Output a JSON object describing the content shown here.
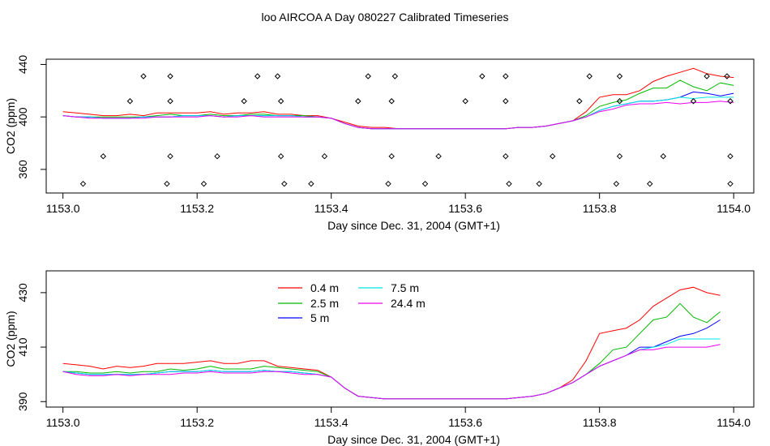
{
  "figure_title": "loo AIRCOA A  Day 080227  Calibrated Timeseries",
  "colors": {
    "0.4 m": "#ff0000",
    "2.5 m": "#00bb00",
    "5 m": "#0000ff",
    "7.5 m": "#00e5e5",
    "24.4 m": "#ee00ee"
  },
  "chart_data": [
    {
      "type": "line",
      "title": "",
      "xlabel": "Day since Dec. 31, 2004 (GMT+1)",
      "ylabel": "CO2 (ppm)",
      "xlim": [
        1152.975,
        1154.03
      ],
      "ylim": [
        342,
        444
      ],
      "xticks": [
        "1153.0",
        "1153.2",
        "1153.4",
        "1153.6",
        "1153.8",
        "1154.0"
      ],
      "yticks": [
        "360",
        "400",
        "440"
      ],
      "legend": "none",
      "x": [
        1153.0,
        1153.02,
        1153.04,
        1153.06,
        1153.08,
        1153.1,
        1153.12,
        1153.14,
        1153.16,
        1153.18,
        1153.2,
        1153.22,
        1153.24,
        1153.26,
        1153.28,
        1153.3,
        1153.32,
        1153.34,
        1153.36,
        1153.38,
        1153.4,
        1153.42,
        1153.44,
        1153.46,
        1153.48,
        1153.5,
        1153.52,
        1153.54,
        1153.56,
        1153.58,
        1153.6,
        1153.62,
        1153.64,
        1153.66,
        1153.68,
        1153.7,
        1153.72,
        1153.74,
        1153.76,
        1153.78,
        1153.8,
        1153.82,
        1153.84,
        1153.86,
        1153.88,
        1153.9,
        1153.92,
        1153.94,
        1153.96,
        1153.98,
        1154.0
      ],
      "series": [
        {
          "name": "0.4 m",
          "values": [
            404,
            403,
            402,
            401,
            401,
            402,
            401,
            403,
            403,
            403,
            403,
            404,
            402,
            403,
            403,
            404,
            402,
            402,
            401,
            401,
            399,
            396,
            393,
            392,
            392,
            391,
            391,
            391,
            391,
            391,
            391,
            391,
            391,
            391,
            392,
            392,
            393,
            395,
            397,
            404,
            415,
            417,
            417,
            420,
            427,
            431,
            434,
            437,
            433,
            431,
            430
          ]
        },
        {
          "name": "2.5 m",
          "values": [
            401,
            400,
            400,
            400,
            400,
            400,
            400,
            401,
            402,
            401,
            401,
            402,
            401,
            401,
            402,
            402,
            401,
            401,
            401,
            400,
            399,
            395,
            392,
            391,
            391,
            391,
            391,
            391,
            391,
            391,
            391,
            391,
            391,
            391,
            392,
            392,
            393,
            395,
            397,
            401,
            408,
            411,
            413,
            418,
            422,
            422,
            428,
            423,
            420,
            426,
            424
          ]
        },
        {
          "name": "5 m",
          "values": [
            401,
            400,
            400,
            399,
            399,
            399,
            400,
            400,
            400,
            401,
            401,
            401,
            400,
            401,
            401,
            401,
            401,
            401,
            400,
            400,
            399,
            395,
            392,
            391,
            391,
            391,
            391,
            391,
            391,
            391,
            391,
            391,
            391,
            391,
            392,
            392,
            393,
            395,
            397,
            400,
            405,
            408,
            410,
            412,
            412,
            413,
            415,
            419,
            418,
            416,
            418
          ]
        },
        {
          "name": "7.5 m",
          "values": [
            401,
            400,
            400,
            399,
            399,
            399,
            400,
            400,
            400,
            401,
            401,
            401,
            400,
            401,
            401,
            401,
            401,
            401,
            400,
            400,
            399,
            395,
            392,
            391,
            391,
            391,
            391,
            391,
            391,
            391,
            391,
            391,
            391,
            391,
            392,
            392,
            393,
            395,
            397,
            400,
            405,
            408,
            410,
            412,
            412,
            413,
            415,
            414,
            415,
            415,
            415
          ]
        },
        {
          "name": "24.4 m",
          "values": [
            401,
            400,
            399,
            399,
            399,
            399,
            399,
            400,
            400,
            400,
            400,
            401,
            400,
            400,
            401,
            400,
            400,
            400,
            400,
            400,
            399,
            395,
            392,
            391,
            391,
            391,
            391,
            391,
            391,
            391,
            391,
            391,
            391,
            391,
            392,
            392,
            393,
            395,
            397,
            400,
            404,
            406,
            409,
            410,
            410,
            411,
            410,
            411,
            411,
            412,
            411
          ]
        }
      ],
      "points": [
        [
          1153.03,
          349
        ],
        [
          1153.06,
          370
        ],
        [
          1153.1,
          412
        ],
        [
          1153.12,
          431
        ],
        [
          1153.155,
          349
        ],
        [
          1153.16,
          370
        ],
        [
          1153.16,
          412
        ],
        [
          1153.16,
          431
        ],
        [
          1153.21,
          349
        ],
        [
          1153.23,
          370
        ],
        [
          1153.27,
          412
        ],
        [
          1153.29,
          431
        ],
        [
          1153.32,
          431
        ],
        [
          1153.325,
          370
        ],
        [
          1153.325,
          412
        ],
        [
          1153.33,
          349
        ],
        [
          1153.37,
          349
        ],
        [
          1153.39,
          370
        ],
        [
          1153.44,
          412
        ],
        [
          1153.455,
          431
        ],
        [
          1153.485,
          349
        ],
        [
          1153.49,
          370
        ],
        [
          1153.49,
          412
        ],
        [
          1153.495,
          431
        ],
        [
          1153.54,
          349
        ],
        [
          1153.56,
          370
        ],
        [
          1153.6,
          412
        ],
        [
          1153.625,
          431
        ],
        [
          1153.66,
          370
        ],
        [
          1153.66,
          412
        ],
        [
          1153.66,
          431
        ],
        [
          1153.665,
          349
        ],
        [
          1153.71,
          349
        ],
        [
          1153.73,
          370
        ],
        [
          1153.77,
          412
        ],
        [
          1153.785,
          431
        ],
        [
          1153.825,
          349
        ],
        [
          1153.83,
          370
        ],
        [
          1153.83,
          412
        ],
        [
          1153.83,
          431
        ],
        [
          1153.875,
          349
        ],
        [
          1153.895,
          370
        ],
        [
          1153.94,
          412
        ],
        [
          1153.96,
          431
        ],
        [
          1153.99,
          431
        ],
        [
          1153.995,
          412
        ],
        [
          1153.995,
          370
        ],
        [
          1153.995,
          349
        ]
      ]
    },
    {
      "type": "line",
      "title": "",
      "xlabel": "Day since Dec. 31, 2004 (GMT+1)",
      "ylabel": "CO2 (ppm)",
      "xlim": [
        1152.975,
        1154.03
      ],
      "ylim": [
        388,
        438
      ],
      "xticks": [
        "1153.0",
        "1153.2",
        "1153.4",
        "1153.6",
        "1153.8",
        "1154.0"
      ],
      "yticks": [
        "390",
        "410",
        "430"
      ],
      "legend": "top-left",
      "x": [
        1153.0,
        1153.02,
        1153.04,
        1153.06,
        1153.08,
        1153.1,
        1153.12,
        1153.14,
        1153.16,
        1153.18,
        1153.2,
        1153.22,
        1153.24,
        1153.26,
        1153.28,
        1153.3,
        1153.32,
        1153.34,
        1153.36,
        1153.38,
        1153.4,
        1153.42,
        1153.44,
        1153.46,
        1153.48,
        1153.5,
        1153.52,
        1153.54,
        1153.56,
        1153.58,
        1153.6,
        1153.62,
        1153.64,
        1153.66,
        1153.68,
        1153.7,
        1153.72,
        1153.74,
        1153.76,
        1153.78,
        1153.8,
        1153.82,
        1153.84,
        1153.86,
        1153.88,
        1153.9,
        1153.92,
        1153.94,
        1153.96,
        1153.98
      ],
      "series": [
        {
          "name": "0.4 m",
          "values": [
            404,
            403.5,
            403,
            402,
            403,
            402.5,
            403,
            404,
            404,
            404,
            404.5,
            405,
            404,
            404,
            405,
            405,
            403,
            402.5,
            402,
            401.5,
            399,
            395,
            392,
            391.5,
            391,
            391,
            391,
            391,
            391,
            391,
            391,
            391,
            391,
            391,
            391.5,
            392,
            393,
            395,
            398,
            405,
            415,
            416,
            417,
            420,
            425,
            428,
            431,
            432,
            430,
            429
          ]
        },
        {
          "name": "2.5 m",
          "values": [
            401,
            401,
            400.5,
            400.5,
            401,
            400.5,
            401,
            401,
            402,
            401.5,
            402,
            403,
            402,
            402,
            402,
            403,
            402.5,
            402,
            401.5,
            401,
            399,
            395,
            392,
            391.5,
            391,
            391,
            391,
            391,
            391,
            391,
            391,
            391,
            391,
            391,
            391.5,
            392,
            393,
            395,
            397,
            400,
            404,
            409,
            410,
            415,
            420,
            421,
            426,
            421,
            419,
            423
          ]
        },
        {
          "name": "5 m",
          "values": [
            401,
            400.5,
            400,
            400,
            400,
            400,
            400,
            400.5,
            401,
            401,
            401,
            401.5,
            401,
            401,
            401,
            401.5,
            401,
            401,
            400.5,
            400,
            399,
            395,
            392,
            391.5,
            391,
            391,
            391,
            391,
            391,
            391,
            391,
            391,
            391,
            391,
            391.5,
            392,
            393,
            395,
            397,
            400,
            403,
            405,
            407,
            410,
            410,
            412,
            414,
            415,
            417,
            420
          ]
        },
        {
          "name": "7.5 m",
          "values": [
            401,
            400.5,
            400,
            400,
            400,
            400,
            400,
            400.5,
            401,
            401,
            401,
            401.5,
            401,
            401,
            401,
            401.5,
            401,
            401,
            400.5,
            400,
            399,
            395,
            392,
            391.5,
            391,
            391,
            391,
            391,
            391,
            391,
            391,
            391,
            391,
            391,
            391.5,
            392,
            393,
            395,
            397,
            400,
            403,
            405,
            407,
            409,
            410,
            411,
            413,
            413,
            413,
            413
          ]
        },
        {
          "name": "24.4 m",
          "values": [
            401,
            400,
            399.5,
            399.5,
            400,
            399.5,
            400,
            400,
            400,
            400.5,
            400.5,
            401,
            400.5,
            400.5,
            400.5,
            401,
            401,
            400.5,
            400,
            400,
            399,
            395,
            392,
            391.5,
            391,
            391,
            391,
            391,
            391,
            391,
            391,
            391,
            391,
            391,
            391.5,
            392,
            393,
            395,
            397,
            400,
            403,
            405,
            407,
            409,
            409,
            410,
            410,
            410,
            410,
            411
          ]
        }
      ]
    }
  ]
}
